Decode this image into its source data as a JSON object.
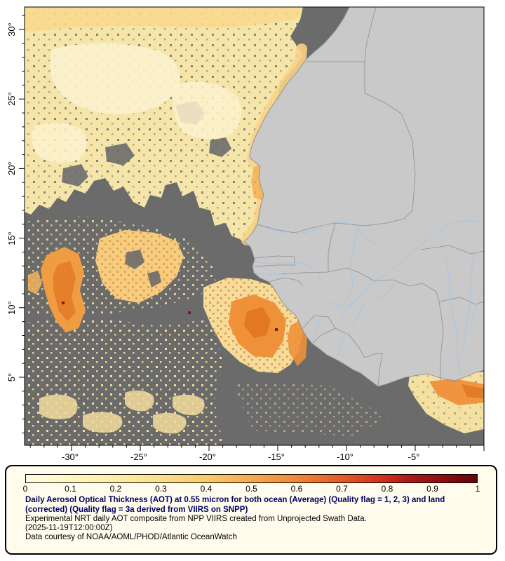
{
  "map": {
    "lat_ticks": [
      "30°",
      "25°",
      "20°",
      "15°",
      "10°",
      "5°"
    ],
    "lon_ticks": [
      "-30°",
      "-25°",
      "-20°",
      "-15°",
      "-10°",
      "-5°"
    ],
    "colors": {
      "ocean_nodata": "#6b6b6b",
      "land": "#c9c9c9",
      "country_border": "#8e8e8e",
      "river": "#a3c6e8",
      "aot_low": "#f6e5a8",
      "aot_mid": "#f8d387",
      "aot_high": "#f09c42",
      "aot_extreme": "#8b1410"
    }
  },
  "legend": {
    "ticks": [
      "0",
      "0.1",
      "0.2",
      "0.3",
      "0.4",
      "0.5",
      "0.6",
      "0.7",
      "0.8",
      "0.9",
      "1"
    ],
    "scale_min": 0,
    "scale_max": 1,
    "title_bold": "Daily Aerosol Optical Thickness (AOT) at 0.55 micron for both ocean (Average) (Quality flag = 1, 2, 3) and land (corrected) (Quality flag = 3a derived from VIIRS on SNPP)",
    "line_experimental": "Experimental NRT daily AOT composite from NPP VIIRS created from Unprojected Swath Data.",
    "line_timestamp": "(2025-11-19T12:00:00Z)",
    "line_courtesy": "Data courtesy of NOAA/AOML/PHOD/Atlantic OceanWatch"
  }
}
